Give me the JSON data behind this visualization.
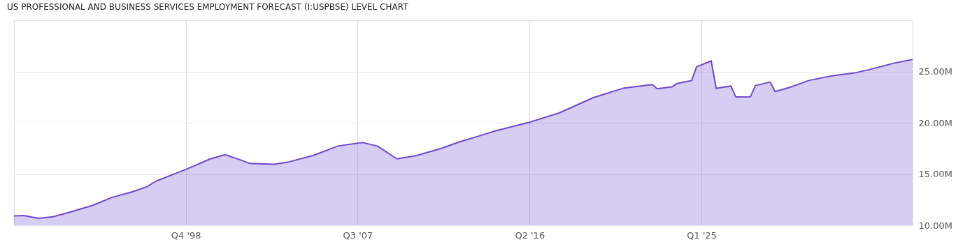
{
  "chart_data": {
    "type": "area",
    "title": "US PROFESSIONAL AND BUSINESS SERVICES EMPLOYMENT FORECAST (I:USPBSE) LEVEL CHART",
    "x": [
      "1990-01",
      "1990-07",
      "1991-04",
      "1992-01",
      "1992-07",
      "1994-01",
      "1995-01",
      "1996-01",
      "1996-10",
      "1997-04",
      "1998-10",
      "2000-01",
      "2000-10",
      "2001-07",
      "2002-01",
      "2003-04",
      "2004-01",
      "2005-04",
      "2006-07",
      "2007-10",
      "2008-07",
      "2009-07",
      "2010-07",
      "2011-10",
      "2012-10",
      "2013-10",
      "2014-07",
      "2016-04",
      "2017-10",
      "2019-07",
      "2021-01",
      "2022-07",
      "2022-10",
      "2023-07",
      "2023-10",
      "2024-07",
      "2024-10",
      "2025-07",
      "2025-10",
      "2026-07",
      "2026-10",
      "2027-07",
      "2027-10",
      "2028-07",
      "2028-10",
      "2029-07",
      "2030-07",
      "2031-10",
      "2032-10",
      "2033-07",
      "2034-10",
      "2035-10"
    ],
    "series": [
      {
        "color": "#7048d0",
        "values": [
          10.91,
          10.95,
          10.68,
          10.84,
          11.09,
          11.94,
          12.73,
          13.25,
          13.75,
          14.32,
          15.45,
          16.48,
          16.89,
          16.4,
          16.03,
          15.96,
          16.18,
          16.82,
          17.73,
          18.07,
          17.73,
          16.48,
          16.8,
          17.5,
          18.18,
          18.75,
          19.2,
          20.05,
          20.95,
          22.45,
          23.36,
          23.73,
          23.32,
          23.5,
          23.82,
          24.11,
          25.45,
          26.04,
          23.35,
          23.59,
          22.52,
          22.54,
          23.63,
          23.97,
          23.05,
          23.45,
          24.14,
          24.61,
          24.84,
          25.16,
          25.79,
          26.18
        ]
      }
    ],
    "xlim": [
      "1990-01",
      "2035-10"
    ],
    "xticks": [
      {
        "value": "1998-10",
        "label": "Q4 '98"
      },
      {
        "value": "2007-07",
        "label": "Q3 '07"
      },
      {
        "value": "2016-04",
        "label": "Q2 '16"
      },
      {
        "value": "2025-01",
        "label": "Q1 '25"
      }
    ],
    "ylim": [
      10,
      30
    ],
    "yticks": [
      {
        "value": 10,
        "label": "10.00M"
      },
      {
        "value": 15,
        "label": "15.00M"
      },
      {
        "value": 20,
        "label": "20.00M"
      },
      {
        "value": 25,
        "label": "25.00M"
      }
    ],
    "grid": true
  }
}
